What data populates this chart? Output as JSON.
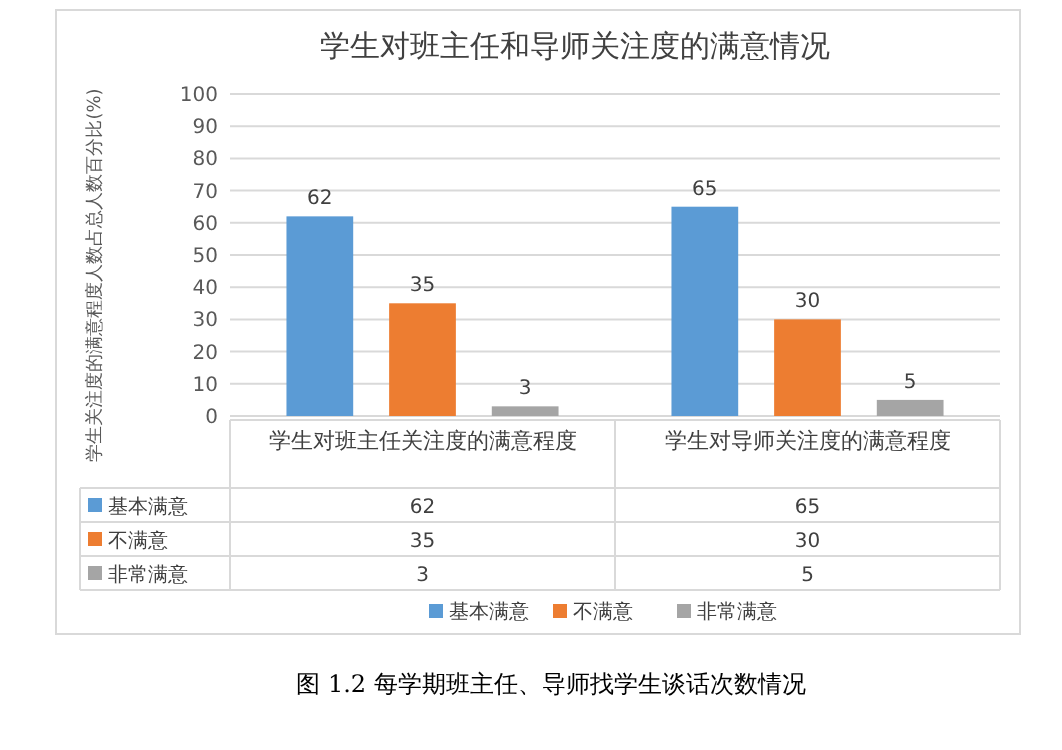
{
  "chart_data": {
    "type": "bar",
    "title": "学生对班主任和导师关注度的满意情况",
    "ylabel": "学生关注度的满意程度人数占总人数百分比(%)",
    "categories": [
      "学生对班主任关注度的满意程度",
      "学生对导师关注度的满意程度"
    ],
    "series": [
      {
        "name": "基本满意",
        "color": "#5b9bd5",
        "values": [
          62,
          65
        ],
        "value_labels": [
          "62",
          "65"
        ]
      },
      {
        "name": "不满意",
        "color": "#ed7d31",
        "values": [
          35,
          30
        ],
        "value_labels": [
          "35",
          "30"
        ]
      },
      {
        "name": "非常满意",
        "color": "#a5a5a5",
        "values": [
          3,
          5
        ],
        "value_labels": [
          "3",
          "5"
        ]
      }
    ],
    "ylim": [
      0,
      100
    ],
    "yticks": [
      0,
      10,
      20,
      30,
      40,
      50,
      60,
      70,
      80,
      90,
      100
    ],
    "grid": "y",
    "legend": "bottom",
    "annotations": [
      "图 1.2 每学期班主任、导师找学生谈话次数情况"
    ]
  }
}
